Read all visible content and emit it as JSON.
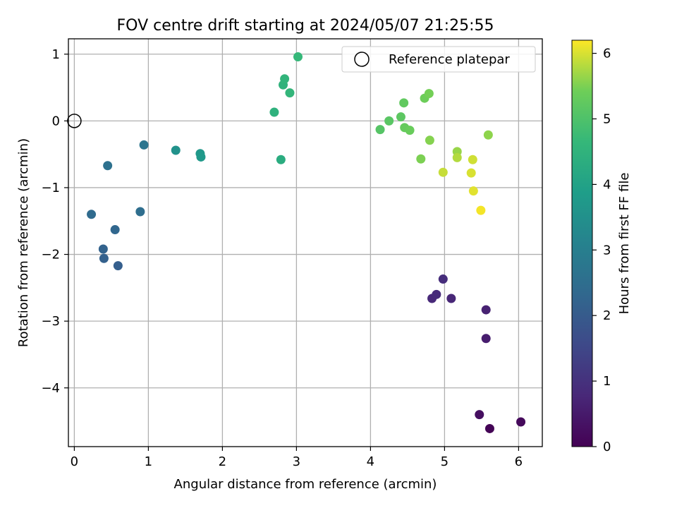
{
  "chart_data": {
    "type": "scatter",
    "title": "FOV centre drift starting at 2024/05/07 21:25:55",
    "xlabel": "Angular distance from reference (arcmin)",
    "ylabel": "Rotation from reference (arcmin)",
    "xlim": [
      -0.08,
      6.32
    ],
    "ylim": [
      -4.88,
      1.23
    ],
    "x_ticks": [
      0,
      1,
      2,
      3,
      4,
      5,
      6
    ],
    "y_ticks": [
      1,
      0,
      -1,
      -2,
      -3,
      -4
    ],
    "grid": true,
    "legend": {
      "position": "top-right",
      "entries": [
        "Reference platepar"
      ]
    },
    "reference_point": {
      "x": 0,
      "y": 0
    },
    "colorbar": {
      "label": "Hours from first FF file",
      "range": [
        0,
        6.2
      ],
      "ticks": [
        0,
        1,
        2,
        3,
        4,
        5,
        6
      ],
      "colormap": "viridis"
    },
    "series": [
      {
        "points": [
          {
            "x": 5.61,
            "y": -4.61,
            "h": 0.05
          },
          {
            "x": 6.03,
            "y": -4.51,
            "h": 0.15
          },
          {
            "x": 5.47,
            "y": -4.4,
            "h": 0.25
          },
          {
            "x": 5.56,
            "y": -3.26,
            "h": 0.55
          },
          {
            "x": 5.56,
            "y": -2.83,
            "h": 0.65
          },
          {
            "x": 5.09,
            "y": -2.66,
            "h": 0.75
          },
          {
            "x": 4.83,
            "y": -2.66,
            "h": 0.8
          },
          {
            "x": 4.89,
            "y": -2.6,
            "h": 0.85
          },
          {
            "x": 4.98,
            "y": -2.37,
            "h": 0.9
          },
          {
            "x": 0.59,
            "y": -2.17,
            "h": 2.1
          },
          {
            "x": 0.4,
            "y": -2.06,
            "h": 2.15
          },
          {
            "x": 0.39,
            "y": -1.92,
            "h": 2.2
          },
          {
            "x": 0.55,
            "y": -1.63,
            "h": 2.3
          },
          {
            "x": 0.23,
            "y": -1.4,
            "h": 2.4
          },
          {
            "x": 0.89,
            "y": -1.36,
            "h": 2.5
          },
          {
            "x": 0.45,
            "y": -0.67,
            "h": 2.6
          },
          {
            "x": 0.94,
            "y": -0.36,
            "h": 2.7
          },
          {
            "x": 1.37,
            "y": -0.44,
            "h": 3.55
          },
          {
            "x": 1.7,
            "y": -0.49,
            "h": 3.7
          },
          {
            "x": 1.71,
            "y": -0.54,
            "h": 3.75
          },
          {
            "x": 2.79,
            "y": -0.58,
            "h": 4.3
          },
          {
            "x": 2.7,
            "y": 0.13,
            "h": 4.45
          },
          {
            "x": 2.82,
            "y": 0.54,
            "h": 4.5
          },
          {
            "x": 2.84,
            "y": 0.63,
            "h": 4.55
          },
          {
            "x": 2.91,
            "y": 0.42,
            "h": 4.6
          },
          {
            "x": 3.02,
            "y": 0.96,
            "h": 4.65
          },
          {
            "x": 4.13,
            "y": -0.13,
            "h": 5.1
          },
          {
            "x": 4.25,
            "y": 0.0,
            "h": 5.15
          },
          {
            "x": 4.41,
            "y": 0.06,
            "h": 5.2
          },
          {
            "x": 4.45,
            "y": 0.27,
            "h": 5.25
          },
          {
            "x": 4.46,
            "y": -0.1,
            "h": 5.3
          },
          {
            "x": 4.53,
            "y": -0.14,
            "h": 5.35
          },
          {
            "x": 4.73,
            "y": 0.34,
            "h": 5.4
          },
          {
            "x": 4.79,
            "y": 0.41,
            "h": 5.45
          },
          {
            "x": 4.68,
            "y": -0.57,
            "h": 5.5
          },
          {
            "x": 4.8,
            "y": -0.29,
            "h": 5.55
          },
          {
            "x": 5.17,
            "y": -0.46,
            "h": 5.65
          },
          {
            "x": 5.59,
            "y": -0.21,
            "h": 5.6
          },
          {
            "x": 5.17,
            "y": -0.55,
            "h": 5.8
          },
          {
            "x": 4.98,
            "y": -0.77,
            "h": 5.9
          },
          {
            "x": 5.38,
            "y": -0.58,
            "h": 5.95
          },
          {
            "x": 5.36,
            "y": -0.78,
            "h": 6.0
          },
          {
            "x": 5.39,
            "y": -1.05,
            "h": 6.05
          },
          {
            "x": 5.49,
            "y": -1.34,
            "h": 6.15
          }
        ]
      }
    ]
  }
}
